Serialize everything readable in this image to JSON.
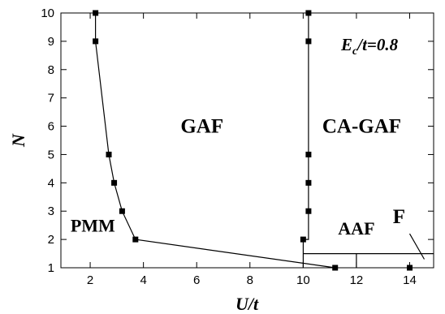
{
  "chart_data": {
    "type": "line",
    "xlabel": "U/t",
    "ylabel": "N",
    "xlim": [
      0.9,
      14.9
    ],
    "ylim": [
      1,
      10
    ],
    "xticks": [
      2,
      4,
      6,
      8,
      10,
      12,
      14
    ],
    "yticks": [
      1,
      2,
      3,
      4,
      5,
      6,
      7,
      8,
      9,
      10
    ],
    "grid": false,
    "parameter_label": {
      "main": "E",
      "sub": "c",
      "rest": "/t=0.8"
    },
    "regions": [
      {
        "label": "GAF",
        "x": 6.2,
        "y": 6.0
      },
      {
        "label": "CA-GAF",
        "x": 12.2,
        "y": 6.0
      },
      {
        "label": "PMM",
        "x": 2.1,
        "y": 2.5
      },
      {
        "label": "AAF",
        "x": 12.0,
        "y": 2.4
      },
      {
        "label": "F",
        "x": 13.6,
        "y": 2.8
      }
    ],
    "series": [
      {
        "x": [
          2.2,
          2.2,
          2.7,
          2.9,
          3.2,
          3.7,
          11.2
        ],
        "y": [
          10,
          9,
          5,
          4,
          3,
          2,
          1
        ],
        "markers": true
      },
      {
        "x": [
          10.2,
          10.2,
          10.2,
          10.2,
          10.2,
          10.2,
          10.0,
          10.0
        ],
        "y": [
          10,
          9,
          5,
          4,
          3,
          2,
          2,
          1
        ],
        "markers": [
          true,
          true,
          true,
          true,
          true,
          false,
          true,
          false
        ]
      },
      {
        "x": [
          10.0,
          14.9
        ],
        "y": [
          1.5,
          1.5
        ],
        "markers": false
      },
      {
        "x": [
          12.0,
          12.0
        ],
        "y": [
          1.5,
          1.0
        ],
        "markers": false
      },
      {
        "x": [
          14.0
        ],
        "y": [
          1
        ],
        "markers": true
      },
      {
        "x": [
          14.0,
          14.55
        ],
        "y": [
          2.2,
          1.3
        ],
        "markers": false
      }
    ]
  }
}
